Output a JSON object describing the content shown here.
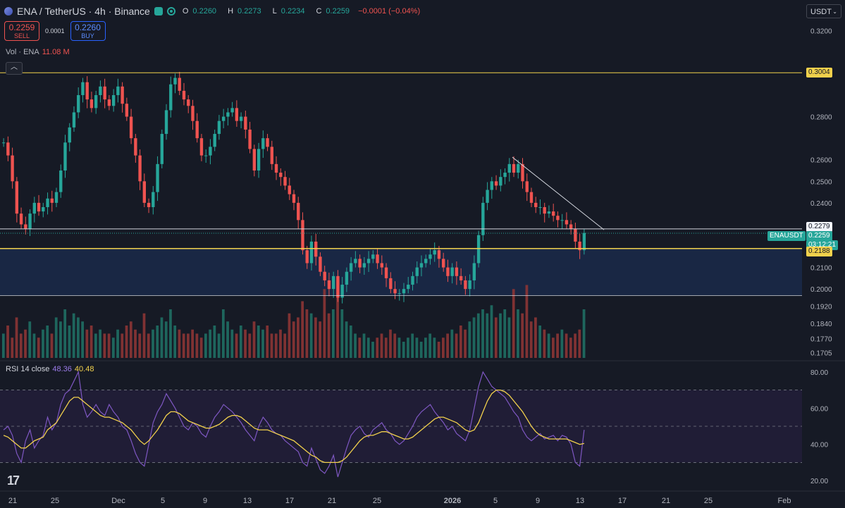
{
  "header": {
    "symbol": "ENA / TetherUS · 4h · Binance",
    "open_label": "O",
    "open": "0.2260",
    "high_label": "H",
    "high": "0.2273",
    "low_label": "L",
    "low": "0.2234",
    "close_label": "C",
    "close": "0.2259",
    "change": "−0.0001 (−0.04%)"
  },
  "trade": {
    "sell_price": "0.2259",
    "sell_label": "SELL",
    "spread": "0.0001",
    "buy_price": "0.2260",
    "buy_label": "BUY"
  },
  "volume_indicator": {
    "label": "Vol · ENA",
    "value": "11.08 M"
  },
  "rsi_indicator": {
    "label": "RSI 14 close",
    "value": "48.36",
    "ma_value": "40.48"
  },
  "currency_select": {
    "value": "USDT"
  },
  "price_axis": {
    "ticks": [
      "0.3200",
      "0.2800",
      "0.2600",
      "0.2500",
      "0.2400",
      "0.2100",
      "0.2000",
      "0.1920",
      "0.1840",
      "0.1770",
      "0.1705"
    ],
    "tick_values": [
      0.32,
      0.28,
      0.26,
      0.25,
      0.24,
      0.21,
      0.2,
      0.192,
      0.184,
      0.177,
      0.1705
    ]
  },
  "rsi_axis": {
    "ticks": [
      "80.00",
      "60.00",
      "40.00",
      "20.00"
    ],
    "tick_values": [
      80,
      60,
      40,
      20
    ]
  },
  "time_axis": {
    "labels": [
      "21",
      "25",
      "Dec",
      "5",
      "9",
      "13",
      "17",
      "21",
      "25",
      "2026",
      "5",
      "9",
      "13",
      "17",
      "21",
      "25",
      "Feb"
    ]
  },
  "levels": {
    "resistance": {
      "value": 0.3004,
      "label": "0.3004"
    },
    "upper": {
      "value": 0.2279,
      "label": "0.2279"
    },
    "current": {
      "value": 0.2259,
      "label": "0.2259",
      "symbol": "ENAUSDT",
      "countdown": "03:12:21"
    },
    "support": {
      "value": 0.2188,
      "label": "0.2188"
    },
    "zone_bottom": {
      "value": 0.197
    }
  },
  "colors": {
    "up": "#26a69a",
    "down": "#ef5350",
    "level": "#f2d14c",
    "rsi": "#7e57c2",
    "rsi_ma": "#f2d14c",
    "zone": "#1a2a4a"
  },
  "chart_data": {
    "type": "candlestick",
    "close_path": [
      0.268,
      0.262,
      0.25,
      0.235,
      0.23,
      0.228,
      0.235,
      0.24,
      0.236,
      0.238,
      0.242,
      0.24,
      0.245,
      0.255,
      0.268,
      0.275,
      0.282,
      0.29,
      0.296,
      0.288,
      0.284,
      0.29,
      0.294,
      0.288,
      0.285,
      0.29,
      0.294,
      0.286,
      0.28,
      0.27,
      0.262,
      0.25,
      0.24,
      0.238,
      0.245,
      0.258,
      0.272,
      0.283,
      0.295,
      0.298,
      0.292,
      0.288,
      0.285,
      0.278,
      0.27,
      0.262,
      0.262,
      0.266,
      0.272,
      0.278,
      0.28,
      0.282,
      0.284,
      0.278,
      0.28,
      0.274,
      0.265,
      0.255,
      0.265,
      0.27,
      0.266,
      0.258,
      0.254,
      0.252,
      0.248,
      0.244,
      0.24,
      0.232,
      0.218,
      0.212,
      0.222,
      0.215,
      0.208,
      0.204,
      0.2,
      0.206,
      0.196,
      0.202,
      0.208,
      0.212,
      0.214,
      0.21,
      0.212,
      0.214,
      0.216,
      0.212,
      0.21,
      0.205,
      0.2,
      0.198,
      0.198,
      0.2,
      0.202,
      0.206,
      0.21,
      0.212,
      0.214,
      0.216,
      0.218,
      0.214,
      0.21,
      0.206,
      0.21,
      0.206,
      0.204,
      0.2,
      0.204,
      0.212,
      0.225,
      0.24,
      0.246,
      0.25,
      0.248,
      0.252,
      0.254,
      0.258,
      0.254,
      0.258,
      0.25,
      0.245,
      0.24,
      0.238,
      0.238,
      0.235,
      0.236,
      0.234,
      0.232,
      0.232,
      0.23,
      0.228,
      0.222,
      0.218,
      0.226
    ],
    "volume_path": [
      0.3,
      0.4,
      0.25,
      0.5,
      0.3,
      0.35,
      0.45,
      0.3,
      0.25,
      0.35,
      0.4,
      0.3,
      0.5,
      0.45,
      0.6,
      0.4,
      0.55,
      0.5,
      0.45,
      0.35,
      0.4,
      0.3,
      0.35,
      0.3,
      0.3,
      0.25,
      0.35,
      0.3,
      0.4,
      0.45,
      0.35,
      0.3,
      0.55,
      0.3,
      0.35,
      0.4,
      0.5,
      0.45,
      0.6,
      0.4,
      0.35,
      0.3,
      0.3,
      0.35,
      0.3,
      0.25,
      0.3,
      0.35,
      0.4,
      0.3,
      0.6,
      0.45,
      0.35,
      0.3,
      0.4,
      0.35,
      0.3,
      0.45,
      0.4,
      0.35,
      0.4,
      0.3,
      0.3,
      0.35,
      0.3,
      0.55,
      0.45,
      0.5,
      0.7,
      0.6,
      0.55,
      0.5,
      0.45,
      0.85,
      0.55,
      0.6,
      1.0,
      0.6,
      0.45,
      0.4,
      0.3,
      0.25,
      0.3,
      0.25,
      0.2,
      0.25,
      0.3,
      0.25,
      0.35,
      0.3,
      0.25,
      0.2,
      0.25,
      0.3,
      0.25,
      0.2,
      0.25,
      0.3,
      0.25,
      0.2,
      0.25,
      0.3,
      0.35,
      0.3,
      0.4,
      0.35,
      0.45,
      0.5,
      0.55,
      0.6,
      0.55,
      0.65,
      0.5,
      0.55,
      0.6,
      0.5,
      0.85,
      0.6,
      0.55,
      0.9,
      0.45,
      0.5,
      0.4,
      0.35,
      0.3,
      0.25,
      0.3,
      0.35,
      0.3,
      0.25,
      0.3,
      0.35,
      0.6
    ],
    "rsi_path": [
      48,
      50,
      45,
      35,
      30,
      42,
      48,
      38,
      42,
      45,
      55,
      48,
      52,
      62,
      68,
      70,
      75,
      80,
      62,
      55,
      58,
      62,
      58,
      56,
      62,
      58,
      55,
      50,
      48,
      42,
      35,
      30,
      28,
      40,
      52,
      58,
      62,
      68,
      64,
      60,
      55,
      50,
      48,
      52,
      50,
      46,
      44,
      50,
      55,
      58,
      62,
      60,
      58,
      55,
      52,
      48,
      45,
      42,
      50,
      55,
      52,
      48,
      46,
      45,
      42,
      40,
      38,
      36,
      30,
      28,
      38,
      32,
      26,
      24,
      28,
      34,
      22,
      30,
      38,
      45,
      48,
      50,
      46,
      44,
      48,
      50,
      52,
      48,
      46,
      42,
      40,
      42,
      46,
      50,
      55,
      58,
      60,
      62,
      58,
      55,
      52,
      48,
      50,
      46,
      44,
      42,
      48,
      60,
      72,
      80,
      76,
      72,
      70,
      68,
      66,
      62,
      58,
      55,
      48,
      44,
      42,
      44,
      46,
      43,
      44,
      45,
      42,
      45,
      44,
      40,
      30,
      28,
      48
    ],
    "rsi_ma_path": [
      45,
      44,
      42,
      40,
      38,
      38,
      40,
      42,
      43,
      44,
      48,
      50,
      52,
      56,
      60,
      64,
      66,
      66,
      64,
      62,
      60,
      58,
      56,
      55,
      55,
      54,
      53,
      52,
      50,
      48,
      45,
      42,
      40,
      42,
      45,
      48,
      52,
      56,
      58,
      58,
      57,
      55,
      53,
      52,
      51,
      50,
      49,
      49,
      50,
      51,
      53,
      55,
      56,
      56,
      55,
      53,
      51,
      49,
      48,
      48,
      48,
      47,
      46,
      45,
      44,
      43,
      42,
      40,
      38,
      36,
      34,
      33,
      31,
      30,
      30,
      30,
      30,
      31,
      33,
      36,
      39,
      42,
      44,
      45,
      45,
      46,
      47,
      47,
      46,
      45,
      44,
      43,
      43,
      44,
      46,
      48,
      50,
      52,
      54,
      55,
      55,
      54,
      53,
      52,
      50,
      48,
      47,
      48,
      52,
      58,
      64,
      68,
      70,
      70,
      69,
      67,
      64,
      61,
      58,
      54,
      50,
      47,
      45,
      44,
      43,
      43,
      43,
      43,
      43,
      42,
      41,
      40,
      40.5
    ],
    "trendline": {
      "from": 0.2612,
      "to": 0.2275
    },
    "price_range": [
      0.168,
      0.325
    ],
    "rsi_range": [
      15,
      85
    ],
    "rsi_bands": [
      70,
      50,
      30
    ],
    "legend": "top-left"
  }
}
